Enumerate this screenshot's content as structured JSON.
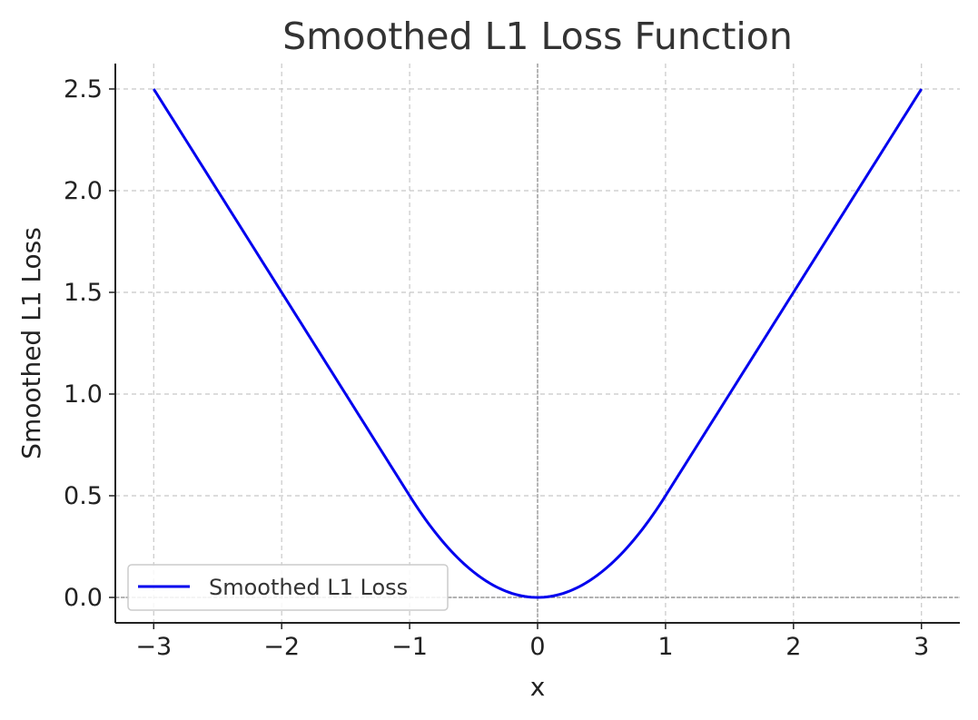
{
  "chart_data": {
    "type": "line",
    "title": "Smoothed L1 Loss Function",
    "xlabel": "x",
    "ylabel": "Smoothed L1 Loss",
    "xlim": [
      -3.3,
      3.3
    ],
    "ylim": [
      -0.125,
      2.625
    ],
    "xticks": [
      -3,
      -2,
      -1,
      0,
      1,
      2,
      3
    ],
    "xtick_labels": [
      "−3",
      "−2",
      "−1",
      "0",
      "1",
      "2",
      "3"
    ],
    "yticks": [
      0.0,
      0.5,
      1.0,
      1.5,
      2.0,
      2.5
    ],
    "ytick_labels": [
      "0.0",
      "0.5",
      "1.0",
      "1.5",
      "2.0",
      "2.5"
    ],
    "grid": true,
    "legend_position": "lower-left",
    "reference_lines": {
      "x": 0,
      "y": 0
    },
    "series": [
      {
        "name": "Smoothed L1 Loss",
        "color": "#0000ee",
        "x": [
          -3.0,
          -2.5,
          -2.0,
          -1.5,
          -1.0,
          -0.75,
          -0.5,
          -0.25,
          0.0,
          0.25,
          0.5,
          0.75,
          1.0,
          1.5,
          2.0,
          2.5,
          3.0
        ],
        "y": [
          2.5,
          2.0,
          1.5,
          1.0,
          0.5,
          0.28125,
          0.125,
          0.03125,
          0.0,
          0.03125,
          0.125,
          0.28125,
          0.5,
          1.0,
          1.5,
          2.0,
          2.5
        ]
      }
    ]
  }
}
